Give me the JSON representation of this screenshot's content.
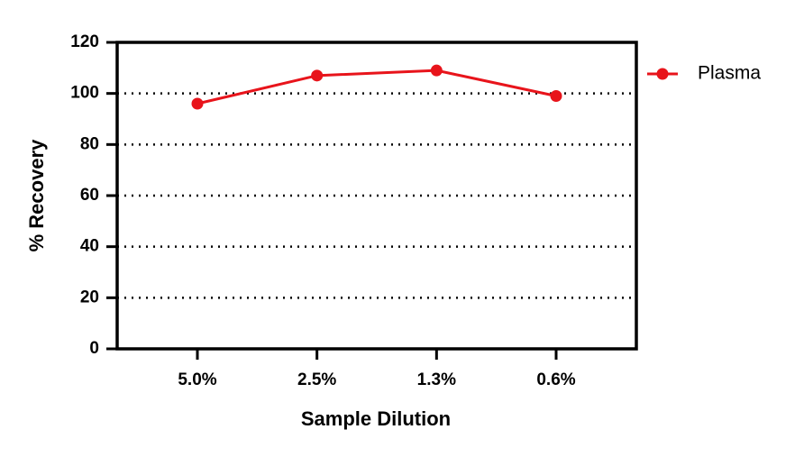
{
  "chart_data": {
    "type": "line",
    "x_label": "Sample Dilution",
    "y_label": "% Recovery",
    "categories": [
      "5.0%",
      "2.5%",
      "1.3%",
      "0.6%"
    ],
    "series": [
      {
        "name": "Plasma",
        "color": "#e8141b",
        "values": [
          96,
          107,
          109,
          99
        ]
      }
    ],
    "ylim": [
      0,
      120
    ],
    "yticks": [
      0,
      20,
      40,
      60,
      80,
      100,
      120
    ],
    "grid": true,
    "legend": "right"
  }
}
